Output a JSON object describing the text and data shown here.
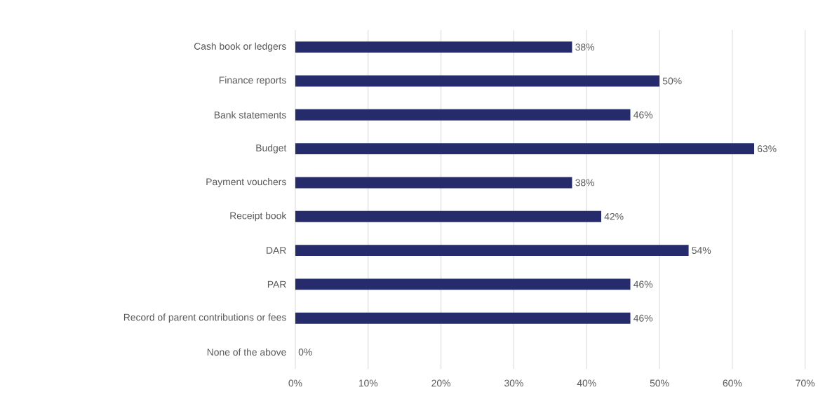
{
  "chart_data": {
    "type": "bar",
    "orientation": "horizontal",
    "categories": [
      "Cash book or ledgers",
      "Finance reports",
      "Bank statements",
      "Budget",
      "Payment vouchers",
      "Receipt book",
      "DAR",
      "PAR",
      "Record of parent contributions or fees",
      "None of the above"
    ],
    "values": [
      38,
      50,
      46,
      63,
      38,
      42,
      54,
      46,
      46,
      0
    ],
    "value_labels": [
      "38%",
      "50%",
      "46%",
      "63%",
      "38%",
      "42%",
      "54%",
      "46%",
      "46%",
      "0%"
    ],
    "color": "#262b6b",
    "xlim": [
      0,
      70
    ],
    "xticks": [
      {
        "value": 0,
        "label": "0%"
      },
      {
        "value": 10,
        "label": "10%"
      },
      {
        "value": 20,
        "label": "20%"
      },
      {
        "value": 30,
        "label": "30%"
      },
      {
        "value": 40,
        "label": "40%"
      },
      {
        "value": 50,
        "label": "50%"
      },
      {
        "value": 60,
        "label": "60%"
      },
      {
        "value": 70,
        "label": "70%"
      }
    ],
    "grid": "x"
  }
}
